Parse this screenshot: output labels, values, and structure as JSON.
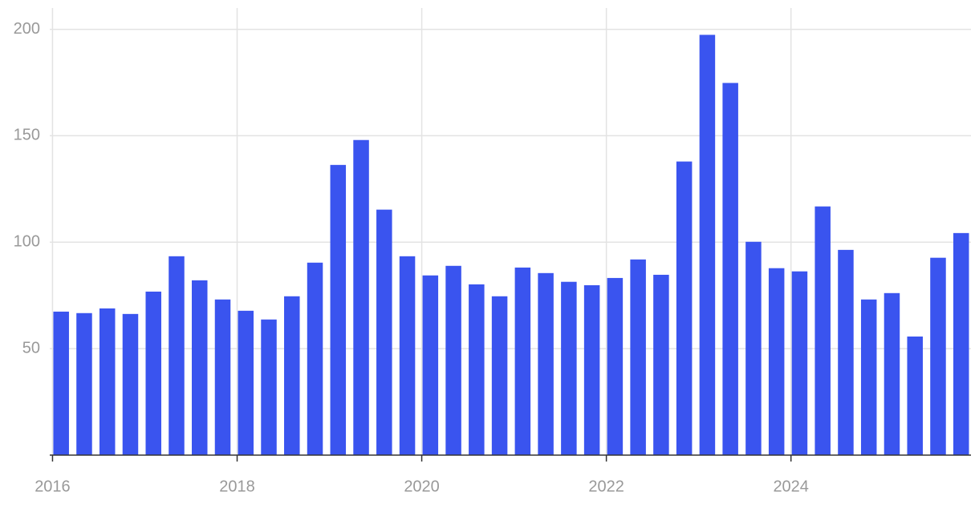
{
  "chart_data": {
    "type": "bar",
    "x": [
      2016,
      2016.25,
      2016.5,
      2016.75,
      2017,
      2017.25,
      2017.5,
      2017.75,
      2018,
      2018.25,
      2018.5,
      2018.75,
      2019,
      2019.25,
      2019.5,
      2019.75,
      2020,
      2020.25,
      2020.5,
      2020.75,
      2021,
      2021.25,
      2021.5,
      2021.75,
      2022,
      2022.25,
      2022.5,
      2022.75,
      2023,
      2023.25,
      2023.5,
      2023.75,
      2024,
      2024.25,
      2024.5,
      2024.75,
      2025,
      2025.25,
      2025.5,
      2025.75
    ],
    "values": [
      67.4,
      66.7,
      68.9,
      66.3,
      76.8,
      93.4,
      82.1,
      73.1,
      67.8,
      63.7,
      74.6,
      90.4,
      136.3,
      148.0,
      115.3,
      93.4,
      84.4,
      88.9,
      80.2,
      74.6,
      88.1,
      85.5,
      81.4,
      79.8,
      83.2,
      91.9,
      84.7,
      137.9,
      197.4,
      174.8,
      100.2,
      87.8,
      86.3,
      116.8,
      96.4,
      73.1,
      76.1,
      55.7,
      92.7,
      104.3
    ],
    "color": "#3a54ef",
    "xlim": [
      2015.97,
      2025.95
    ],
    "xticks": [
      2016,
      2018,
      2020,
      2022,
      2024
    ],
    "ylim": [
      0,
      210
    ],
    "yticks": [
      50,
      100,
      150,
      200
    ],
    "grid": true
  }
}
